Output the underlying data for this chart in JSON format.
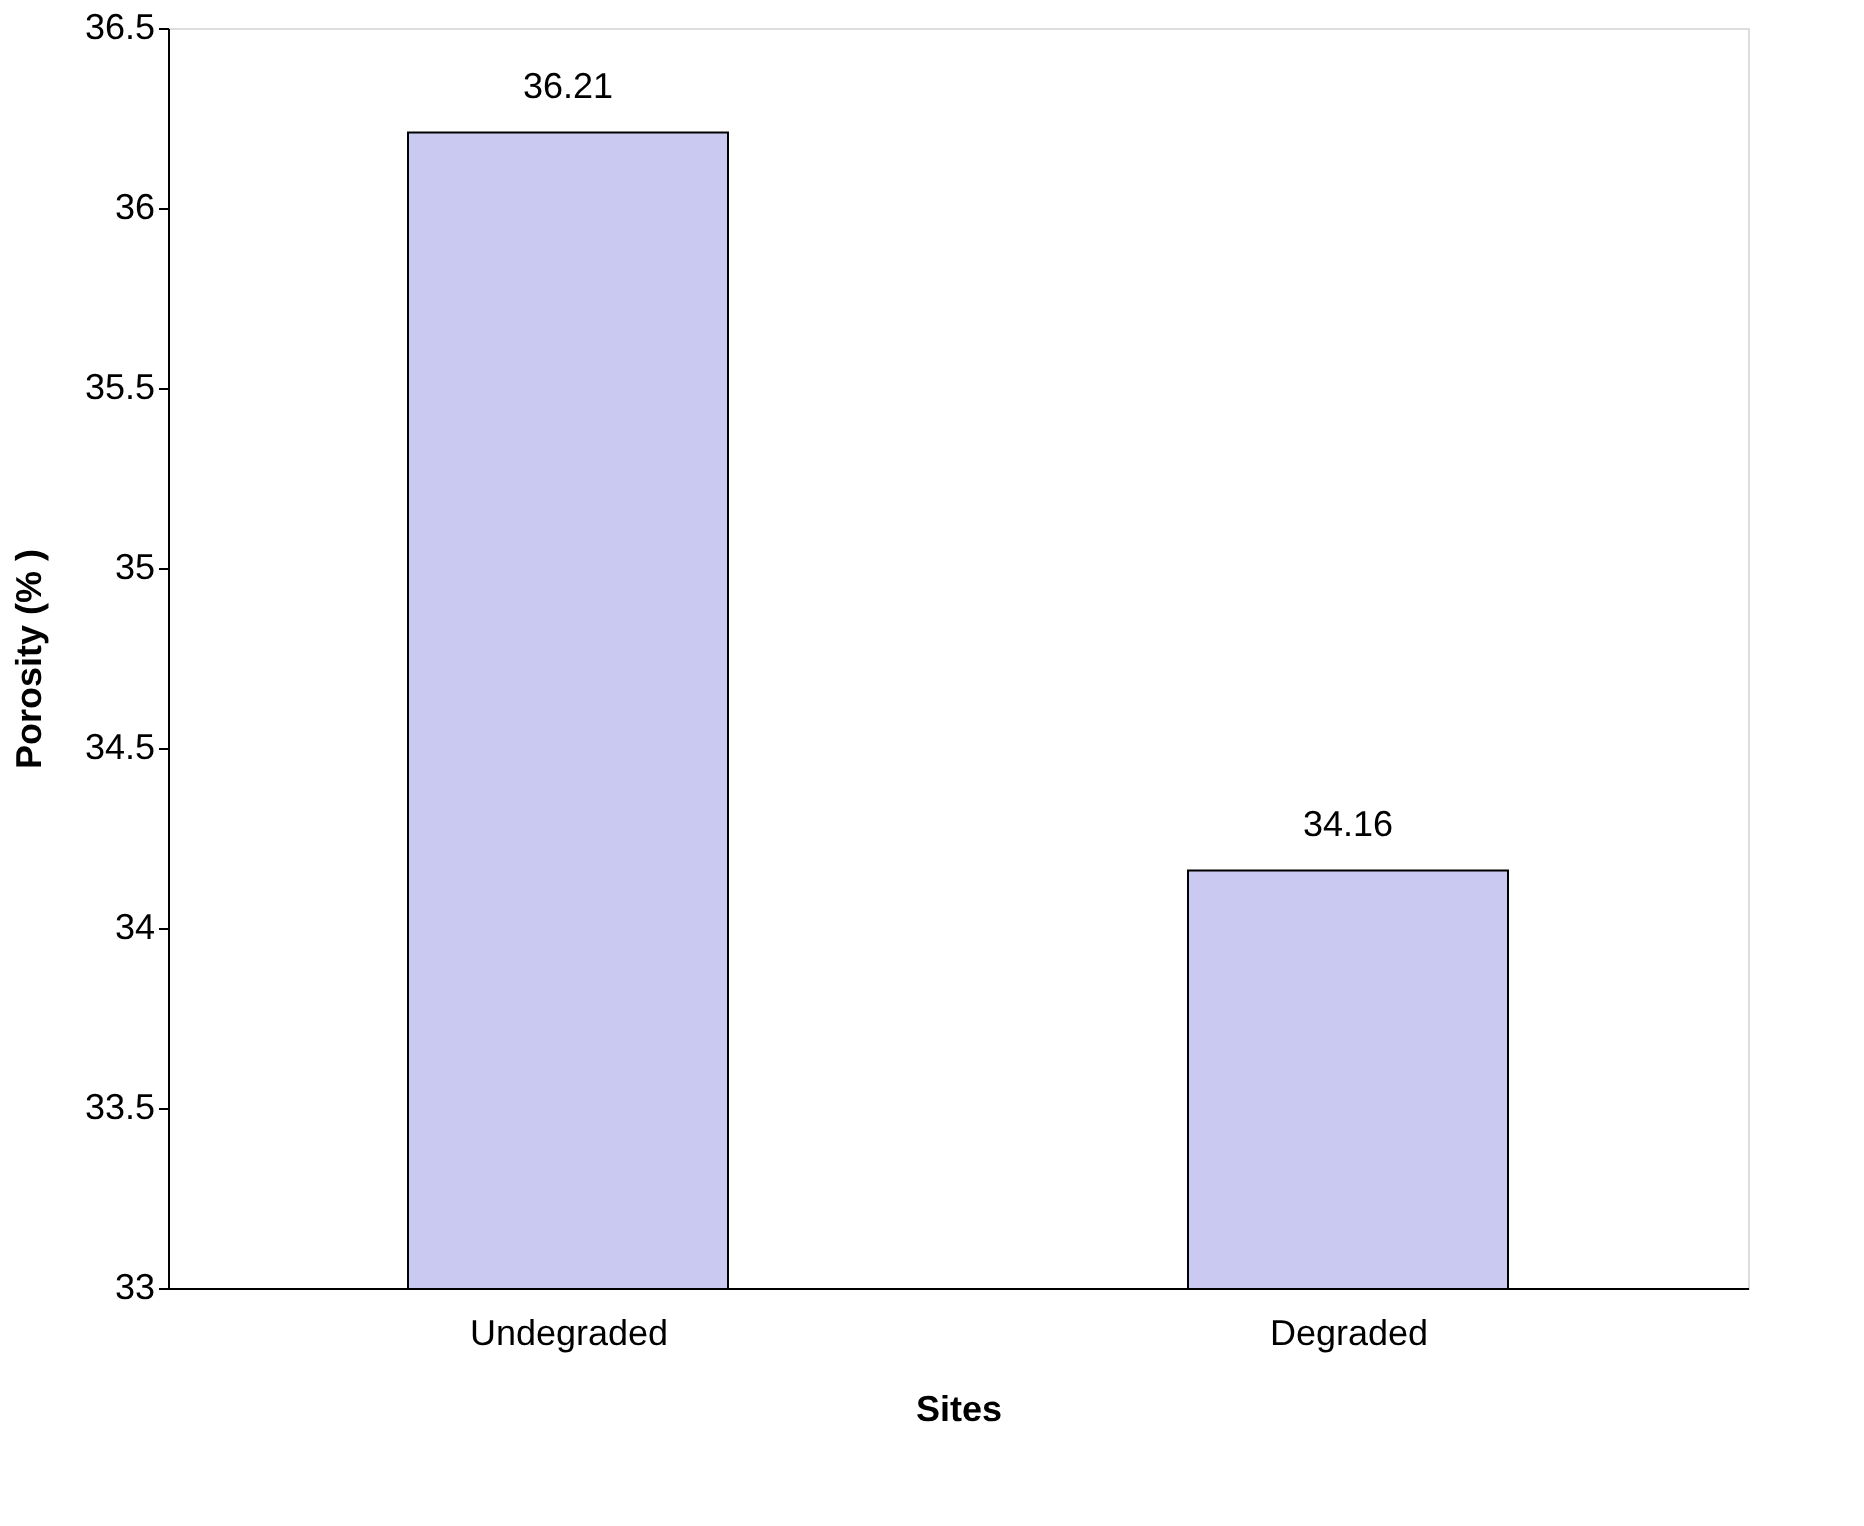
{
  "chart_data": {
    "type": "bar",
    "xlabel": "Sites",
    "ylabel": "Porosity (% )",
    "categories": [
      "Undegraded",
      "Degraded"
    ],
    "values": [
      36.21,
      34.16
    ],
    "color": "#c9c9f2",
    "ylim": [
      33,
      36.5
    ],
    "yticks": [
      33,
      33.5,
      34,
      34.5,
      35,
      35.5,
      36,
      36.5
    ],
    "data_labels": true,
    "grid": false
  }
}
